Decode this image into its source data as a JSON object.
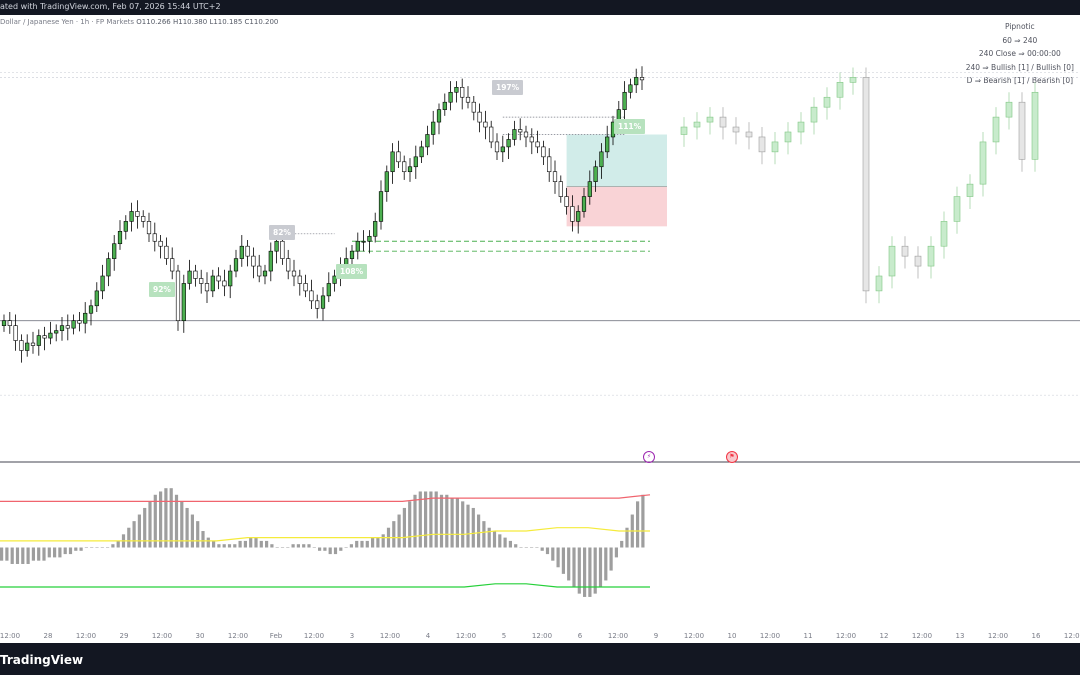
{
  "header": {
    "title": "ated with TradingView.com, Feb 07, 2026 15:44 UTC+2",
    "symbol": "Dollar / Japanese Yen · 1h · FP Markets",
    "ohlc": [
      "O110.266",
      "H110.380",
      "L110.185",
      "C110.200"
    ]
  },
  "indicator": {
    "name": "Pipnotic",
    "lines": [
      "60 ⇒ 240",
      "240 Close ⇒ 00:00:00",
      "240 ⇒ Bullish [1] / Bullish [0]",
      "D ⇒ Bearish [1] / Bearish [0]"
    ]
  },
  "tags": [
    {
      "text": "197%",
      "style": "gray"
    },
    {
      "text": "82%",
      "style": "gray"
    },
    {
      "text": "92%",
      "style": "green"
    },
    {
      "text": "108%",
      "style": "green"
    },
    {
      "text": "111%",
      "style": "green"
    }
  ],
  "event_icons": [
    {
      "icon": "lightning-icon",
      "color": "#9c27b0"
    },
    {
      "icon": "flag-icon",
      "color": "#f23645"
    }
  ],
  "x_axis_labels": [
    "12:00",
    "28",
    "12:00",
    "29",
    "12:00",
    "30",
    "12:00",
    "Feb",
    "12:00",
    "3",
    "12:00",
    "4",
    "12:00",
    "5",
    "12:00",
    "6",
    "12:00",
    "9",
    "12:00",
    "10",
    "12:00",
    "11",
    "12:00",
    "12",
    "12:00",
    "13",
    "12:00",
    "16",
    "12:00"
  ],
  "footer": {
    "brand": "TradingView"
  },
  "colors": {
    "bull_body": "#000000",
    "bull_wick": "#000000",
    "bull_fill": "#4caf50",
    "bear_fill": "#ffffff",
    "projection_bull": "#c8ebcc",
    "projection_bear": "#e6e6e6",
    "profit_zone": "#b2dfdb",
    "loss_zone": "#f8c8cc",
    "histogram": "#9e9e9e",
    "upper_band": "#f0646e",
    "mid_line": "#f5eb3b",
    "lower_band": "#26d03a"
  },
  "chart_data": [
    {
      "type": "candlestick",
      "title": "",
      "series_note": "",
      "closes": [
        110.3,
        110.28,
        110.22,
        110.18,
        110.21,
        110.2,
        110.24,
        110.23,
        110.25,
        110.26,
        110.28,
        110.27,
        110.3,
        110.29,
        110.33,
        110.36,
        110.42,
        110.48,
        110.55,
        110.61,
        110.66,
        110.7,
        110.74,
        110.72,
        110.7,
        110.65,
        110.62,
        110.6,
        110.55,
        110.5,
        110.3,
        110.45,
        110.5,
        110.47,
        110.45,
        110.42,
        110.48,
        110.46,
        110.44,
        110.5,
        110.55,
        110.6,
        110.56,
        110.52,
        110.48,
        110.5,
        110.58,
        110.62,
        110.55,
        110.5,
        110.48,
        110.45,
        110.42,
        110.38,
        110.35,
        110.4,
        110.45,
        110.48,
        110.52,
        110.55,
        110.58,
        110.62,
        110.62,
        110.64,
        110.7,
        110.82,
        110.9,
        110.98,
        110.94,
        110.9,
        110.92,
        110.96,
        111.0,
        111.05,
        111.1,
        111.15,
        111.18,
        111.22,
        111.24,
        111.2,
        111.18,
        111.14,
        111.1,
        111.08,
        111.02,
        110.98,
        111.0,
        111.03,
        111.07,
        111.06,
        111.04,
        111.02,
        111.0,
        110.96,
        110.9,
        110.86,
        110.8,
        110.76,
        110.7,
        110.74,
        110.8,
        110.86,
        110.92,
        110.98,
        111.04,
        111.1,
        111.15,
        111.22,
        111.25,
        111.28,
        111.27
      ],
      "projection": [
        111.08,
        111.1,
        111.12,
        111.08,
        111.06,
        111.04,
        110.98,
        111.02,
        111.06,
        111.1,
        111.16,
        111.2,
        111.26,
        111.28,
        110.42,
        110.48,
        110.6,
        110.56,
        110.52,
        110.6,
        110.7,
        110.8,
        110.85,
        111.02,
        111.12,
        111.18,
        110.95,
        111.22
      ],
      "ylim": [
        109.9,
        111.35
      ],
      "price_levels": [
        111.3,
        111.28,
        110.3,
        110.0
      ],
      "position": {
        "entry": 110.84,
        "target": 111.05,
        "stop": 110.68
      },
      "dashed_levels": [
        110.62,
        110.58
      ]
    },
    {
      "type": "histogram",
      "title": "",
      "values": [
        -4,
        -4,
        -5,
        -5,
        -5,
        -5,
        -4,
        -4,
        -4,
        -3,
        -3,
        -3,
        -2,
        -2,
        -1,
        -1,
        0,
        0,
        0,
        0,
        0,
        1,
        2,
        4,
        6,
        8,
        10,
        12,
        14,
        16,
        17,
        18,
        18,
        16,
        14,
        12,
        10,
        8,
        5,
        3,
        2,
        1,
        1,
        1,
        1,
        2,
        2,
        3,
        3,
        2,
        2,
        1,
        0,
        0,
        0,
        1,
        1,
        1,
        1,
        0,
        -1,
        -1,
        -2,
        -2,
        -1,
        0,
        1,
        2,
        2,
        2,
        3,
        3,
        4,
        6,
        8,
        10,
        12,
        14,
        16,
        17,
        17,
        17,
        17,
        16,
        16,
        15,
        15,
        14,
        13,
        12,
        10,
        8,
        6,
        5,
        4,
        3,
        2,
        1,
        0,
        0,
        0,
        0,
        -1,
        -2,
        -4,
        -6,
        -8,
        -10,
        -12,
        -14,
        -15,
        -15,
        -14,
        -12,
        -10,
        -7,
        -3,
        2,
        6,
        10,
        14,
        16
      ],
      "upper_band": [
        14,
        14,
        14,
        14,
        14,
        14,
        14,
        14,
        14,
        14,
        14,
        14,
        14,
        14,
        15,
        15,
        15,
        15,
        15,
        15,
        15,
        16
      ],
      "mid_line": [
        2,
        2,
        2,
        2,
        2,
        2,
        2,
        2,
        3,
        3,
        3,
        3,
        3,
        3,
        4,
        4,
        5,
        5,
        6,
        6,
        5,
        5
      ],
      "lower_band": [
        -12,
        -12,
        -12,
        -12,
        -12,
        -12,
        -12,
        -12,
        -12,
        -12,
        -12,
        -12,
        -12,
        -12,
        -12,
        -12,
        -11,
        -11,
        -12,
        -12,
        -12,
        -12
      ],
      "ylim": [
        -22,
        22
      ]
    }
  ]
}
